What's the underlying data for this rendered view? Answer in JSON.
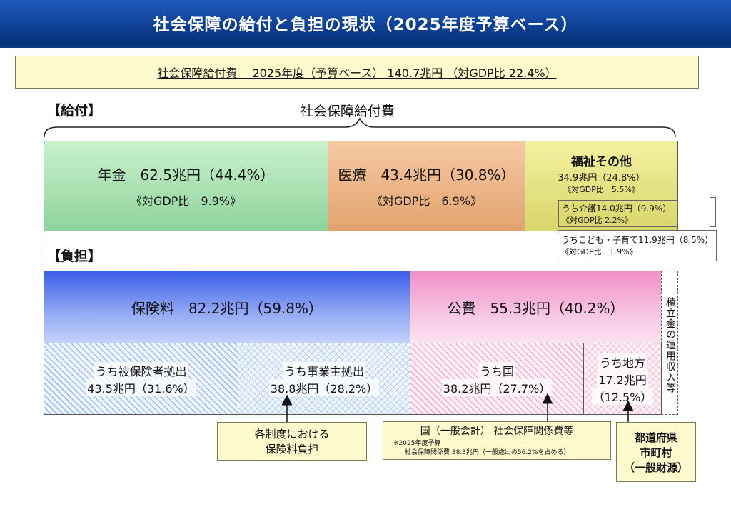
{
  "header": {
    "title": "社会保障の給付と負担の現状（2025年度予算ベース）"
  },
  "summary": {
    "text": "社会保障給付費　 2025年度（予算ベース） 140.7兆円 （対GDP比 22.4%）"
  },
  "benefits": {
    "section_label": "【給付】",
    "center_label": "社会保障給付費",
    "pension": {
      "title": "年金　62.5兆円（44.4%）",
      "gdp": "《対GDP比　9.9%》"
    },
    "medical": {
      "title": "医療　43.4兆円（30.8%）",
      "gdp": "《対GDP比　6.9%》"
    },
    "welfare": {
      "title": "福祉その他",
      "amount": "34.9兆円（24.8%）",
      "gdp": "《対GDP比　5.5%》",
      "care": "うち介護14.0兆円（9.9%）",
      "care_gdp": "《対GDP比 2.2%》",
      "child": "うちこども・子育て11.9兆円（8.5%）",
      "child_gdp": "《対GDP比　1.9%》"
    }
  },
  "burden": {
    "section_label": "【負担】",
    "premium": {
      "title": "保険料　82.2兆円（59.8%）"
    },
    "public": {
      "title": "公費　55.3兆円（40.2%）"
    },
    "reserve": {
      "label": "積立金の運用収入等"
    },
    "insured": {
      "line1": "うち被保険者拠出",
      "line2": "43.5兆円（31.6%）"
    },
    "employer": {
      "line1": "うち事業主拠出",
      "line2": "38.8兆円（28.2%）"
    },
    "national": {
      "line1": "うち国",
      "line2": "38.2兆円（27.7%）"
    },
    "local": {
      "line1": "うち地方",
      "line2": "17.2兆円",
      "line3": "（12.5%）"
    }
  },
  "callouts": {
    "premium_note": {
      "line1": "各制度における",
      "line2": "保険料負担"
    },
    "national_note": {
      "line1": "国（一般会計） 社会保障関係費等",
      "note1": "※2025年度予算",
      "note2": "社会保障関係費 38.3兆円（一般歳出の56.2%を占める）"
    },
    "local_note": {
      "line1": "都道府県",
      "line2": "市町村",
      "line3": "（一般財源）"
    }
  },
  "colors": {
    "header": "#0d3f93",
    "pension": "#a8e0b0",
    "medical": "#eeb588",
    "welfare": "#e8e585",
    "premium": "#8ea6f5",
    "public": "#f5b0d6",
    "callout": "#fffacd"
  }
}
